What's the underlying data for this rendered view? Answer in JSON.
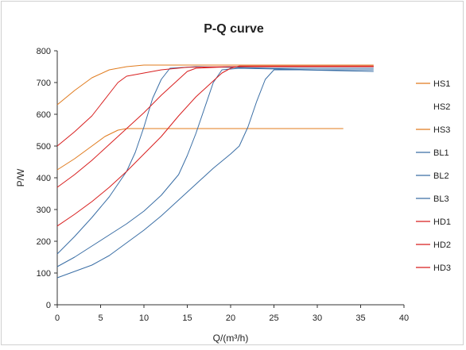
{
  "chart_data": {
    "type": "line",
    "title": "P-Q  curve",
    "xlabel": "Q/(m³/h)",
    "ylabel": "P/W",
    "xlim": [
      0,
      40
    ],
    "ylim": [
      0,
      800
    ],
    "x_ticks": [
      "0",
      "5",
      "10",
      "15",
      "20",
      "25",
      "30",
      "35",
      "40"
    ],
    "y_ticks": [
      "0",
      "100",
      "200",
      "300",
      "400",
      "500",
      "600",
      "700",
      "800"
    ],
    "grid": false,
    "legend_position": "right",
    "series": [
      {
        "name": "HS1",
        "color": "#e07b1e",
        "points": [
          [
            0,
            630
          ],
          [
            2,
            675
          ],
          [
            4,
            715
          ],
          [
            6,
            740
          ],
          [
            8,
            750
          ],
          [
            10,
            755
          ],
          [
            20,
            755
          ],
          [
            36.5,
            755
          ]
        ]
      },
      {
        "name": "HS2",
        "color": "#ffffff",
        "points": []
      },
      {
        "name": "HS3",
        "color": "#e07b1e",
        "points": [
          [
            0,
            425
          ],
          [
            2,
            460
          ],
          [
            4,
            500
          ],
          [
            5.5,
            530
          ],
          [
            7,
            550
          ],
          [
            8,
            555
          ],
          [
            20,
            555
          ],
          [
            33,
            555
          ]
        ]
      },
      {
        "name": "BL1",
        "color": "#3a6ea5",
        "points": [
          [
            0,
            85
          ],
          [
            2,
            105
          ],
          [
            4,
            125
          ],
          [
            6,
            155
          ],
          [
            8,
            195
          ],
          [
            10,
            235
          ],
          [
            12,
            280
          ],
          [
            14,
            330
          ],
          [
            16,
            380
          ],
          [
            18,
            430
          ],
          [
            20,
            475
          ],
          [
            21,
            500
          ],
          [
            22,
            560
          ],
          [
            23,
            640
          ],
          [
            24,
            710
          ],
          [
            25,
            740
          ],
          [
            28,
            740
          ],
          [
            36.5,
            735
          ]
        ]
      },
      {
        "name": "BL2",
        "color": "#3a6ea5",
        "points": [
          [
            0,
            120
          ],
          [
            2,
            150
          ],
          [
            4,
            185
          ],
          [
            6,
            220
          ],
          [
            8,
            255
          ],
          [
            10,
            295
          ],
          [
            12,
            345
          ],
          [
            14,
            410
          ],
          [
            15,
            470
          ],
          [
            16,
            540
          ],
          [
            17,
            620
          ],
          [
            18,
            700
          ],
          [
            19,
            740
          ],
          [
            21,
            745
          ],
          [
            30,
            740
          ],
          [
            36.5,
            740
          ]
        ]
      },
      {
        "name": "BL3",
        "color": "#3a6ea5",
        "points": [
          [
            0,
            160
          ],
          [
            2,
            215
          ],
          [
            4,
            275
          ],
          [
            6,
            340
          ],
          [
            8,
            420
          ],
          [
            9,
            480
          ],
          [
            10,
            560
          ],
          [
            11,
            650
          ],
          [
            12,
            710
          ],
          [
            13,
            745
          ],
          [
            16,
            750
          ],
          [
            25,
            745
          ],
          [
            36.5,
            745
          ]
        ]
      },
      {
        "name": "HD1",
        "color": "#d81e1e",
        "points": [
          [
            0,
            500
          ],
          [
            2,
            545
          ],
          [
            4,
            595
          ],
          [
            5,
            630
          ],
          [
            6,
            665
          ],
          [
            7,
            700
          ],
          [
            8,
            720
          ],
          [
            10,
            730
          ],
          [
            12,
            740
          ],
          [
            15,
            748
          ],
          [
            20,
            750
          ],
          [
            36.5,
            750
          ]
        ]
      },
      {
        "name": "HD2",
        "color": "#d81e1e",
        "points": [
          [
            0,
            370
          ],
          [
            2,
            410
          ],
          [
            4,
            455
          ],
          [
            6,
            505
          ],
          [
            8,
            555
          ],
          [
            10,
            605
          ],
          [
            12,
            660
          ],
          [
            14,
            710
          ],
          [
            15,
            735
          ],
          [
            16,
            745
          ],
          [
            20,
            750
          ],
          [
            36.5,
            750
          ]
        ]
      },
      {
        "name": "HD3",
        "color": "#d81e1e",
        "points": [
          [
            0,
            248
          ],
          [
            2,
            285
          ],
          [
            4,
            325
          ],
          [
            6,
            370
          ],
          [
            8,
            420
          ],
          [
            10,
            475
          ],
          [
            12,
            530
          ],
          [
            14,
            595
          ],
          [
            16,
            655
          ],
          [
            18,
            705
          ],
          [
            19,
            730
          ],
          [
            20,
            745
          ],
          [
            21,
            752
          ],
          [
            36.5,
            752
          ]
        ]
      }
    ]
  }
}
